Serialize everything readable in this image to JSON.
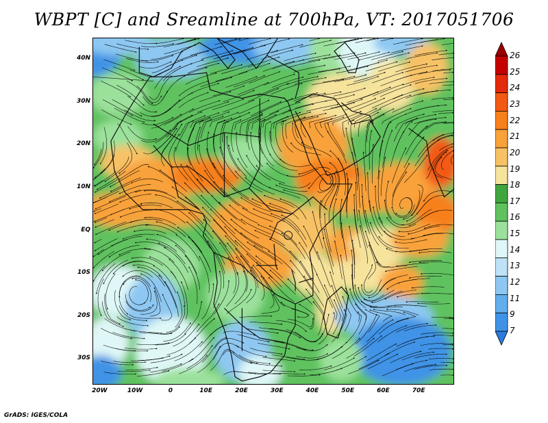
{
  "title": "WBPT [C] and Sreamline at 700hPa, VT: 2017051706",
  "footer": "GrADS: IGES/COLA",
  "map": {
    "lat_labels": [
      "40N",
      "30N",
      "20N",
      "10N",
      "EQ",
      "10S",
      "20S",
      "30S"
    ],
    "lat_values": [
      40,
      30,
      20,
      10,
      0,
      -10,
      -20,
      -30
    ],
    "lon_labels": [
      "20W",
      "10W",
      "0",
      "10E",
      "20E",
      "30E",
      "40E",
      "50E",
      "60E",
      "70E"
    ],
    "lon_values": [
      -20,
      -10,
      0,
      10,
      20,
      30,
      40,
      50,
      60,
      70
    ],
    "lon_range": [
      -22,
      80
    ],
    "lat_range": [
      -36,
      45
    ]
  },
  "colorbar": {
    "labels": [
      "26",
      "25",
      "24",
      "23",
      "22",
      "21",
      "20",
      "19",
      "18",
      "17",
      "16",
      "15",
      "14",
      "13",
      "12",
      "11",
      "9",
      "7"
    ],
    "colors": [
      "#9a0000",
      "#c40000",
      "#e32a0a",
      "#f25a14",
      "#f7801c",
      "#f9a23a",
      "#f7c266",
      "#f6e39c",
      "#3fa63f",
      "#5fc25f",
      "#9be19b",
      "#dff7f7",
      "#bfe2f7",
      "#8ec8f2",
      "#62aeec",
      "#3f93e6",
      "#2a7bde"
    ]
  },
  "field_colors": {
    "ocean_cold": "#3f93e6",
    "cool": "#8ec8f2",
    "pale": "#dff7f7",
    "lightgreen": "#9be19b",
    "green": "#5fc25f",
    "darkgreen": "#3fa63f",
    "yellow": "#f6e39c",
    "peach": "#f7c266",
    "orange": "#f9a23a",
    "deeporange": "#f7801c",
    "red": "#f25a14"
  }
}
